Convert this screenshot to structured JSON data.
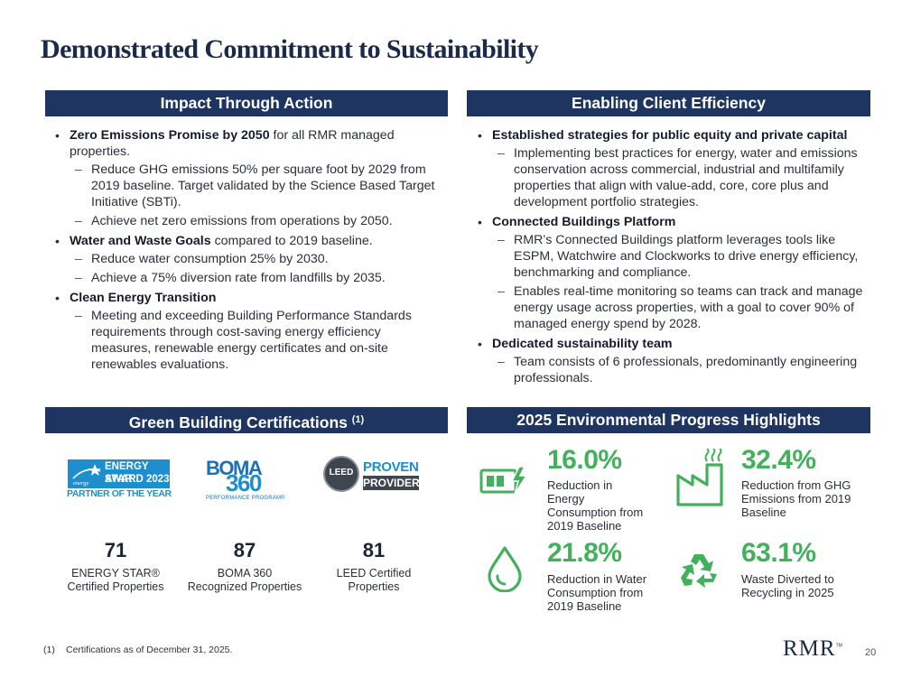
{
  "title": "Demonstrated Commitment to Sustainability",
  "left_band": "Impact Through Action",
  "right_band": "Enabling Client Efficiency",
  "left_bullets": [
    {
      "head": "Zero Emissions Promise by 2050",
      "rest": " for all RMR managed properties.",
      "subs": [
        "Reduce GHG emissions 50% per square foot by 2029 from 2019 baseline. Target validated by the Science Based Target Initiative (SBTi).",
        "Achieve net zero emissions from operations by 2050."
      ]
    },
    {
      "head": "Water and Waste Goals",
      "rest": " compared to 2019 baseline.",
      "subs": [
        "Reduce water consumption 25% by 2030.",
        "Achieve a 75% diversion rate from landfills by 2035."
      ]
    },
    {
      "head": "Clean Energy Transition",
      "rest": "",
      "subs": [
        "Meeting and exceeding Building Performance Standards requirements through cost-saving energy efficiency measures, renewable energy certificates and on-site renewables evaluations."
      ]
    }
  ],
  "right_bullets": [
    {
      "head": "Established strategies for public equity and private capital",
      "rest": "",
      "subs": [
        "Implementing best practices for energy, water and emissions conservation across commercial, industrial and multifamily properties that align with value-add, core, core plus  and development portfolio strategies."
      ]
    },
    {
      "head": "Connected Buildings Platform",
      "rest": "",
      "subs": [
        "RMR’s Connected Buildings platform leverages tools like ESPM, Watchwire and Clockworks to drive energy efficiency, benchmarking and compliance.",
        "Enables real-time monitoring so teams can track and manage energy usage across properties, with a goal to cover 90% of managed energy spend by 2028."
      ]
    },
    {
      "head": "Dedicated sustainability team",
      "rest": "",
      "subs": [
        "Team consists of 6 professionals, predominantly engineering professionals."
      ]
    }
  ],
  "certs_band": {
    "text": "Green Building Certifications",
    "sup": "(1)"
  },
  "highlights_band": "2025 Environmental Progress Highlights",
  "logos": {
    "energy_star": {
      "line1": "ENERGY STAR",
      "line2": "AWARD 2023",
      "line3": "PARTNER OF THE YEAR",
      "mark": "energy"
    },
    "boma": {
      "word": "BOMA",
      "num": "360",
      "sub": "PERFORMANCE PROGRAM®"
    },
    "leed": {
      "seal": "LEED",
      "line1": "PROVEN",
      "line2": "PROVIDER"
    }
  },
  "certs": [
    {
      "value": "71",
      "label1": "ENERGY STAR®",
      "label2": "Certified Properties"
    },
    {
      "value": "87",
      "label1": "BOMA 360",
      "label2": "Recognized Properties"
    },
    {
      "value": "81",
      "label1": "LEED Certified",
      "label2": "Properties"
    }
  ],
  "highlights": [
    {
      "value": "16.0%",
      "lines": [
        "Reduction in",
        "Energy",
        "Consumption from",
        "2019 Baseline"
      ],
      "icon": "battery-icon"
    },
    {
      "value": "32.4%",
      "lines": [
        "Reduction from GHG",
        "Emissions from 2019",
        "Baseline"
      ],
      "icon": "factory-icon"
    },
    {
      "value": "21.8%",
      "lines": [
        "Reduction in Water",
        "Consumption from",
        "2019 Baseline"
      ],
      "icon": "water-drop-icon"
    },
    {
      "value": "63.1%",
      "lines": [
        "Waste Diverted to",
        "Recycling in 2025"
      ],
      "icon": "recycle-icon"
    }
  ],
  "footnote": {
    "marker": "(1)",
    "text": "Certifications as of December 31, 2025."
  },
  "brand": "RMR",
  "brand_tm": "TM",
  "page_number": "20",
  "colors": {
    "navy": "#1e3461",
    "green": "#43b05c",
    "energy_blue": "#1d8fcf"
  }
}
